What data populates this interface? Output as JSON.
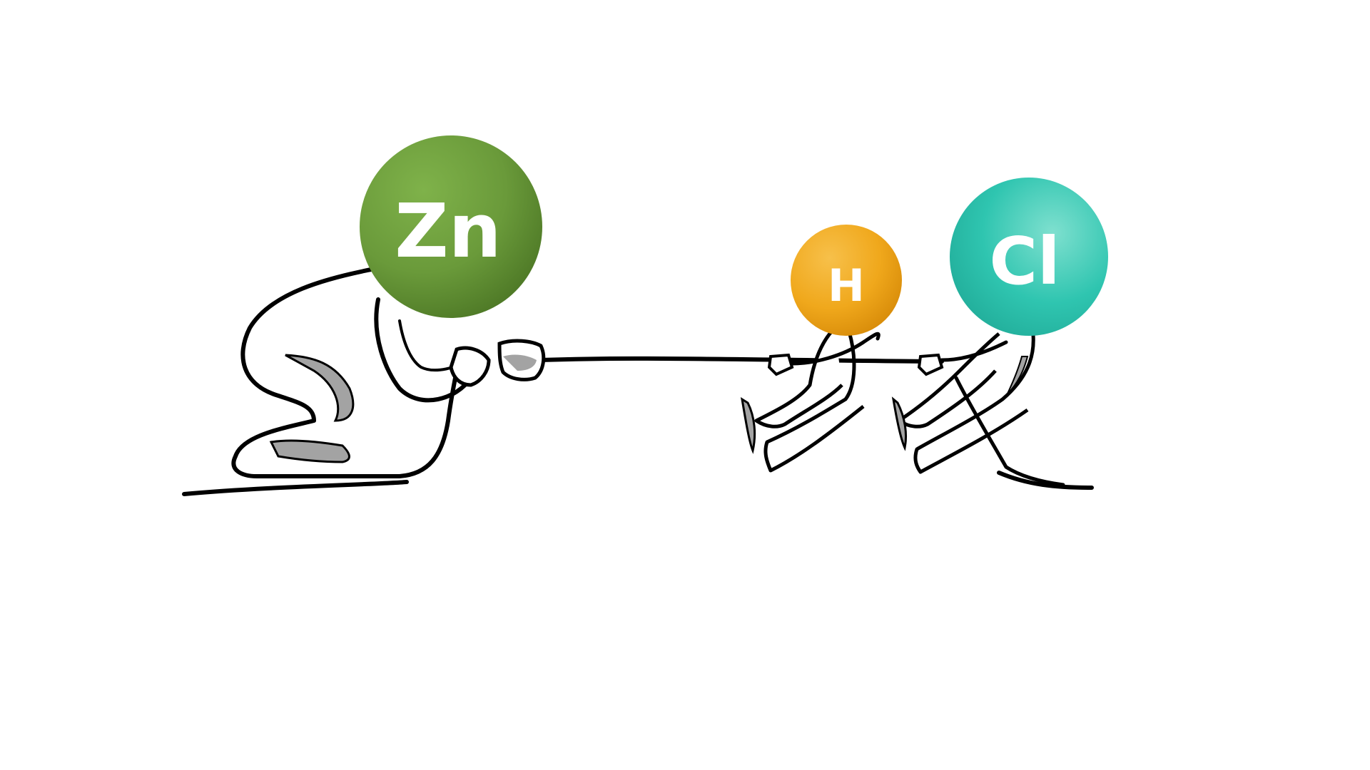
{
  "atoms": {
    "zinc": {
      "symbol": "Zn",
      "color": "#6a9a3a"
    },
    "hydrogen": {
      "symbol": "H",
      "color": "#f0a81c"
    },
    "chlorine": {
      "symbol": "Cl",
      "color": "#2fc5b0"
    }
  },
  "colors": {
    "outline": "#000000",
    "shadow": "#a3a3a3",
    "figure_fill": "#ffffff",
    "background": "#ffffff"
  }
}
